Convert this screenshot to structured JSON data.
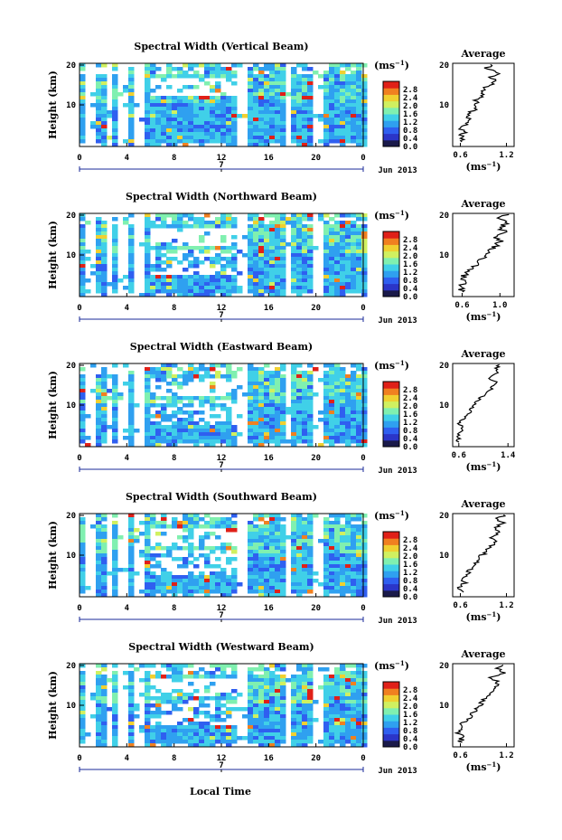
{
  "figure": {
    "type": "time-height spectral width panels",
    "xlabel": "Local Time",
    "date_label": "Jun 2013",
    "date_marker": "7",
    "x_ticks": [
      "0",
      "4",
      "8",
      "12",
      "16",
      "20",
      "0"
    ],
    "y_label": "Height (km)",
    "y_ticks": [
      "10",
      "20"
    ],
    "cbar_unit": "(ms",
    "cbar_unit_exp": "−1",
    "cbar_unit_close": ")",
    "cbar_ticks": [
      "0.0",
      "0.4",
      "0.8",
      "1.2",
      "1.6",
      "2.0",
      "2.4",
      "2.8"
    ],
    "avg_title": "Average",
    "avg_unit": "(ms",
    "colormap": [
      "#1a1a4a",
      "#2b35c8",
      "#2f5ff0",
      "#2fa0f0",
      "#40d0e8",
      "#80f0b0",
      "#d0f060",
      "#f0d030",
      "#f08020",
      "#e02018"
    ]
  },
  "chart_data": [
    {
      "type": "heatmap",
      "title": "Spectral Width (Vertical Beam)",
      "avg_ticks": [
        "0.6",
        "1.2"
      ],
      "avg_range": [
        0.5,
        1.3
      ],
      "avg_profile": [
        [
          0.62,
          3
        ],
        [
          0.6,
          4
        ],
        [
          0.65,
          5
        ],
        [
          0.6,
          6
        ],
        [
          0.68,
          7
        ],
        [
          0.72,
          8
        ],
        [
          0.7,
          9
        ],
        [
          0.78,
          10
        ],
        [
          0.82,
          11
        ],
        [
          0.8,
          12
        ],
        [
          0.9,
          13
        ],
        [
          0.88,
          14
        ],
        [
          0.95,
          15
        ],
        [
          1.05,
          16
        ],
        [
          1.0,
          17
        ],
        [
          1.1,
          18
        ],
        [
          0.95,
          19
        ],
        [
          1.0,
          20
        ]
      ]
    },
    {
      "type": "heatmap",
      "title": "Spectral Width (Northward Beam)",
      "avg_ticks": [
        "0.6",
        "1.0"
      ],
      "avg_range": [
        0.5,
        1.15
      ],
      "avg_profile": [
        [
          0.6,
          3
        ],
        [
          0.58,
          4
        ],
        [
          0.62,
          5
        ],
        [
          0.6,
          6
        ],
        [
          0.65,
          7
        ],
        [
          0.7,
          8
        ],
        [
          0.75,
          9
        ],
        [
          0.8,
          10
        ],
        [
          0.85,
          11
        ],
        [
          0.9,
          12
        ],
        [
          0.95,
          13
        ],
        [
          1.0,
          14
        ],
        [
          0.95,
          15
        ],
        [
          1.05,
          16
        ],
        [
          1.0,
          17
        ],
        [
          1.08,
          18
        ],
        [
          1.0,
          19
        ],
        [
          1.1,
          20
        ]
      ]
    },
    {
      "type": "heatmap",
      "title": "Spectral Width (Eastward Beam)",
      "avg_ticks": [
        "0.6",
        "1.4"
      ],
      "avg_range": [
        0.5,
        1.5
      ],
      "avg_profile": [
        [
          0.6,
          3
        ],
        [
          0.58,
          4
        ],
        [
          0.62,
          5
        ],
        [
          0.65,
          6
        ],
        [
          0.6,
          7
        ],
        [
          0.7,
          8
        ],
        [
          0.75,
          9
        ],
        [
          0.8,
          10
        ],
        [
          0.85,
          11
        ],
        [
          0.9,
          12
        ],
        [
          1.0,
          13
        ],
        [
          1.1,
          14
        ],
        [
          1.15,
          15
        ],
        [
          1.2,
          16
        ],
        [
          1.1,
          17
        ],
        [
          1.25,
          18
        ],
        [
          1.2,
          19
        ],
        [
          1.3,
          20
        ]
      ]
    },
    {
      "type": "heatmap",
      "title": "Spectral Width (Southward Beam)",
      "avg_ticks": [
        "0.6",
        "1.2"
      ],
      "avg_range": [
        0.5,
        1.3
      ],
      "avg_profile": [
        [
          0.62,
          3
        ],
        [
          0.58,
          4
        ],
        [
          0.65,
          5
        ],
        [
          0.6,
          6
        ],
        [
          0.7,
          7
        ],
        [
          0.72,
          8
        ],
        [
          0.8,
          9
        ],
        [
          0.85,
          10
        ],
        [
          0.88,
          11
        ],
        [
          0.95,
          12
        ],
        [
          1.0,
          13
        ],
        [
          1.05,
          14
        ],
        [
          1.0,
          15
        ],
        [
          1.1,
          16
        ],
        [
          1.05,
          17
        ],
        [
          1.15,
          18
        ],
        [
          1.1,
          19
        ],
        [
          1.2,
          20
        ]
      ]
    },
    {
      "type": "heatmap",
      "title": "Spectral Width (Westward Beam)",
      "avg_ticks": [
        "0.6",
        "1.2"
      ],
      "avg_range": [
        0.5,
        1.3
      ],
      "avg_profile": [
        [
          0.6,
          3
        ],
        [
          0.62,
          4
        ],
        [
          0.58,
          5
        ],
        [
          0.65,
          6
        ],
        [
          0.62,
          7
        ],
        [
          0.7,
          8
        ],
        [
          0.75,
          9
        ],
        [
          0.8,
          10
        ],
        [
          0.85,
          11
        ],
        [
          0.9,
          12
        ],
        [
          0.95,
          13
        ],
        [
          1.0,
          14
        ],
        [
          1.05,
          15
        ],
        [
          1.1,
          16
        ],
        [
          1.0,
          17
        ],
        [
          1.15,
          18
        ],
        [
          1.1,
          19
        ],
        [
          1.2,
          20
        ]
      ]
    }
  ]
}
